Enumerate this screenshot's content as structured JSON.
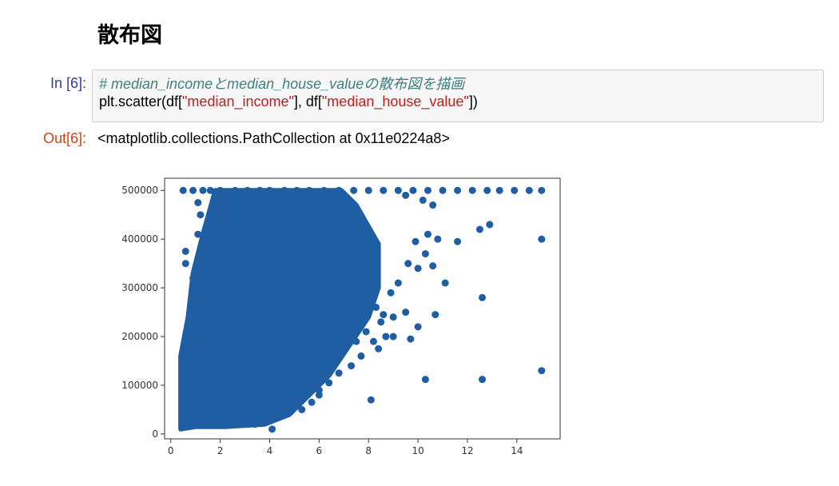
{
  "notebook": {
    "heading": "散布図",
    "cell": {
      "in_prompt": "In [6]:",
      "code_comment": "# median_incomeとmedian_house_valueの散布図を描画",
      "code_prefix": "plt.scatter(df[",
      "code_arg1": "\"median_income\"",
      "code_mid": "], df[",
      "code_arg2": "\"median_house_value\"",
      "code_suffix": "])",
      "out_prompt": "Out[6]:",
      "output_text": "<matplotlib.collections.PathCollection at 0x11e0224a8>"
    }
  },
  "colors": {
    "marker": "#1f5ea2",
    "in_prompt": "#303f9f",
    "out_prompt": "#d84315"
  },
  "chart_data": {
    "type": "scatter",
    "title": "",
    "xlabel": "",
    "ylabel": "",
    "xlim": [
      -0.25,
      15.75
    ],
    "ylim": [
      -10000,
      525000
    ],
    "x_ticks": [
      0,
      2,
      4,
      6,
      8,
      10,
      12,
      14
    ],
    "y_ticks": [
      0,
      100000,
      200000,
      300000,
      400000,
      500000
    ],
    "grid": false,
    "marker_color": "#1f5ea2",
    "points": [
      [
        0.5,
        500000
      ],
      [
        0.9,
        500000
      ],
      [
        1.3,
        500000
      ],
      [
        1.6,
        500000
      ],
      [
        2.0,
        500000
      ],
      [
        2.6,
        500000
      ],
      [
        3.1,
        500000
      ],
      [
        3.6,
        500000
      ],
      [
        4.0,
        500000
      ],
      [
        4.6,
        500000
      ],
      [
        5.1,
        500000
      ],
      [
        5.6,
        500000
      ],
      [
        6.2,
        500000
      ],
      [
        6.8,
        500000
      ],
      [
        7.4,
        500000
      ],
      [
        8.0,
        500000
      ],
      [
        8.6,
        500000
      ],
      [
        9.2,
        500000
      ],
      [
        9.8,
        500000
      ],
      [
        10.4,
        500000
      ],
      [
        11.0,
        500000
      ],
      [
        11.6,
        500000
      ],
      [
        12.2,
        500000
      ],
      [
        12.8,
        500000
      ],
      [
        13.3,
        500000
      ],
      [
        13.9,
        500000
      ],
      [
        14.5,
        500000
      ],
      [
        15.0,
        500000
      ],
      [
        9.5,
        490000
      ],
      [
        10.2,
        480000
      ],
      [
        10.6,
        470000
      ],
      [
        12.9,
        430000
      ],
      [
        12.5,
        420000
      ],
      [
        11.6,
        395000
      ],
      [
        10.4,
        410000
      ],
      [
        10.8,
        400000
      ],
      [
        9.9,
        395000
      ],
      [
        10.3,
        370000
      ],
      [
        10.6,
        345000
      ],
      [
        9.6,
        350000
      ],
      [
        10.0,
        340000
      ],
      [
        11.1,
        310000
      ],
      [
        9.2,
        310000
      ],
      [
        8.9,
        290000
      ],
      [
        12.6,
        280000
      ],
      [
        8.6,
        245000
      ],
      [
        9.5,
        250000
      ],
      [
        9.0,
        240000
      ],
      [
        10.0,
        220000
      ],
      [
        10.7,
        245000
      ],
      [
        9.7,
        195000
      ],
      [
        15.0,
        400000
      ],
      [
        15.0,
        130000
      ],
      [
        12.6,
        112000
      ],
      [
        10.3,
        112000
      ],
      [
        8.1,
        70000
      ],
      [
        6.0,
        80000
      ],
      [
        5.7,
        65000
      ],
      [
        5.3,
        50000
      ],
      [
        4.1,
        10000
      ],
      [
        3.4,
        20000
      ],
      [
        0.6,
        15000
      ],
      [
        0.5,
        160000
      ],
      [
        0.6,
        375000
      ],
      [
        1.1,
        475000
      ],
      [
        1.2,
        450000
      ],
      [
        1.1,
        410000
      ],
      [
        0.6,
        350000
      ],
      [
        1.5,
        390000
      ],
      [
        0.9,
        320000
      ],
      [
        1.3,
        300000
      ],
      [
        1.0,
        275000
      ],
      [
        2.1,
        470000
      ],
      [
        2.5,
        445000
      ],
      [
        1.8,
        300000
      ],
      [
        2.0,
        250000
      ],
      [
        2.3,
        350000
      ],
      [
        2.6,
        310000
      ],
      [
        3.0,
        420000
      ],
      [
        3.2,
        380000
      ],
      [
        3.5,
        440000
      ],
      [
        3.9,
        470000
      ],
      [
        4.3,
        455000
      ],
      [
        4.6,
        420000
      ],
      [
        5.0,
        460000
      ],
      [
        5.4,
        430000
      ],
      [
        5.9,
        470000
      ],
      [
        6.3,
        445000
      ],
      [
        6.7,
        410000
      ],
      [
        7.1,
        390000
      ],
      [
        7.4,
        350000
      ],
      [
        7.8,
        330000
      ],
      [
        8.0,
        300000
      ],
      [
        7.6,
        280000
      ],
      [
        7.2,
        255000
      ],
      [
        6.9,
        220000
      ],
      [
        6.5,
        200000
      ],
      [
        6.1,
        180000
      ],
      [
        5.7,
        165000
      ],
      [
        5.3,
        140000
      ],
      [
        4.9,
        120000
      ],
      [
        4.5,
        100000
      ],
      [
        4.1,
        80000
      ],
      [
        3.7,
        60000
      ],
      [
        3.3,
        40000
      ],
      [
        2.9,
        30000
      ],
      [
        2.5,
        25000
      ],
      [
        2.1,
        30000
      ],
      [
        1.7,
        35000
      ],
      [
        1.3,
        40000
      ],
      [
        1.0,
        50000
      ],
      [
        0.8,
        80000
      ],
      [
        0.7,
        110000
      ],
      [
        0.9,
        140000
      ],
      [
        1.1,
        170000
      ],
      [
        1.3,
        200000
      ],
      [
        1.5,
        230000
      ],
      [
        1.7,
        260000
      ],
      [
        8.3,
        260000
      ],
      [
        8.5,
        230000
      ],
      [
        7.9,
        210000
      ],
      [
        7.5,
        190000
      ],
      [
        7.0,
        170000
      ],
      [
        6.6,
        150000
      ],
      [
        6.3,
        130000
      ],
      [
        5.9,
        110000
      ],
      [
        5.5,
        95000
      ],
      [
        8.2,
        190000
      ],
      [
        8.7,
        200000
      ],
      [
        7.7,
        160000
      ],
      [
        7.3,
        140000
      ],
      [
        6.8,
        125000
      ],
      [
        6.4,
        105000
      ],
      [
        6.0,
        90000
      ],
      [
        9.0,
        200000
      ],
      [
        8.4,
        175000
      ]
    ],
    "dense_region": [
      [
        0.4,
        10000
      ],
      [
        0.4,
        160000
      ],
      [
        0.7,
        240000
      ],
      [
        0.9,
        330000
      ],
      [
        1.3,
        410000
      ],
      [
        1.8,
        500000
      ],
      [
        6.9,
        500000
      ],
      [
        7.5,
        470000
      ],
      [
        8.4,
        390000
      ],
      [
        8.4,
        300000
      ],
      [
        8.0,
        240000
      ],
      [
        7.2,
        180000
      ],
      [
        6.4,
        120000
      ],
      [
        5.6,
        80000
      ],
      [
        4.8,
        40000
      ],
      [
        3.8,
        20000
      ],
      [
        2.2,
        15000
      ],
      [
        1.0,
        15000
      ]
    ]
  }
}
